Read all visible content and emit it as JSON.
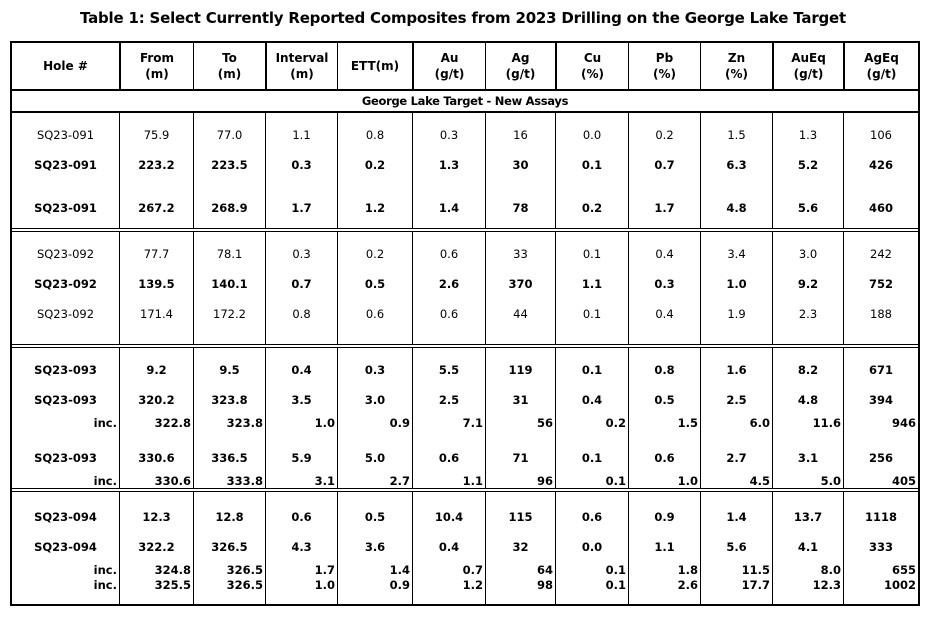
{
  "title": "Table 1: Select Currently Reported Composites from 2023 Drilling on the George Lake Target",
  "table": {
    "columns": [
      {
        "label": "Hole #",
        "sub": ""
      },
      {
        "label": "From",
        "sub": "(m)"
      },
      {
        "label": "To",
        "sub": "(m)"
      },
      {
        "label": "Interval",
        "sub": "(m)"
      },
      {
        "label": "ETT(m)",
        "sub": ""
      },
      {
        "label": "Au",
        "sub": "(g/t)"
      },
      {
        "label": "Ag",
        "sub": "(g/t)"
      },
      {
        "label": "Cu",
        "sub": "(%)"
      },
      {
        "label": "Pb",
        "sub": "(%)"
      },
      {
        "label": "Zn",
        "sub": "(%)"
      },
      {
        "label": "AuEq",
        "sub": "(g/t)"
      },
      {
        "label": "AgEq",
        "sub": "(g/t)"
      }
    ],
    "section_banner": "George Lake Target - New Assays",
    "colors": {
      "text": "#000000",
      "border": "#000000",
      "background": "#ffffff"
    },
    "blocks": [
      {
        "hole": "SQ23-091",
        "rows": [
          {
            "cells": [
              "SQ23-091",
              "75.9",
              "77.0",
              "1.1",
              "0.8",
              "0.3",
              "16",
              "0.0",
              "0.2",
              "1.5",
              "1.3",
              "106"
            ],
            "bold": false,
            "inc": false,
            "gap_before": false
          },
          {
            "cells": [
              "SQ23-091",
              "223.2",
              "223.5",
              "0.3",
              "0.2",
              "1.3",
              "30",
              "0.1",
              "0.7",
              "6.3",
              "5.2",
              "426"
            ],
            "bold": true,
            "inc": false,
            "gap_before": false
          },
          {
            "cells": [
              "SQ23-091",
              "267.2",
              "268.9",
              "1.7",
              "1.2",
              "1.4",
              "78",
              "0.2",
              "1.7",
              "4.8",
              "5.6",
              "460"
            ],
            "bold": true,
            "inc": false,
            "gap_before": true
          }
        ]
      },
      {
        "hole": "SQ23-092",
        "rows": [
          {
            "cells": [
              "SQ23-092",
              "77.7",
              "78.1",
              "0.3",
              "0.2",
              "0.6",
              "33",
              "0.1",
              "0.4",
              "3.4",
              "3.0",
              "242"
            ],
            "bold": false,
            "inc": false,
            "gap_before": false
          },
          {
            "cells": [
              "SQ23-092",
              "139.5",
              "140.1",
              "0.7",
              "0.5",
              "2.6",
              "370",
              "1.1",
              "0.3",
              "1.0",
              "9.2",
              "752"
            ],
            "bold": true,
            "inc": false,
            "gap_before": false
          },
          {
            "cells": [
              "SQ23-092",
              "171.4",
              "172.2",
              "0.8",
              "0.6",
              "0.6",
              "44",
              "0.1",
              "0.4",
              "1.9",
              "2.3",
              "188"
            ],
            "bold": false,
            "inc": false,
            "gap_before": false
          }
        ]
      },
      {
        "hole": "SQ23-093",
        "rows": [
          {
            "cells": [
              "SQ23-093",
              "9.2",
              "9.5",
              "0.4",
              "0.3",
              "5.5",
              "119",
              "0.1",
              "0.8",
              "1.6",
              "8.2",
              "671"
            ],
            "bold": true,
            "inc": false,
            "gap_before": false
          },
          {
            "cells": [
              "SQ23-093",
              "320.2",
              "323.8",
              "3.5",
              "3.0",
              "2.5",
              "31",
              "0.4",
              "0.5",
              "2.5",
              "4.8",
              "394"
            ],
            "bold": true,
            "inc": false,
            "gap_before": false
          },
          {
            "cells": [
              "inc.",
              "322.8",
              "323.8",
              "1.0",
              "0.9",
              "7.1",
              "56",
              "0.2",
              "1.5",
              "6.0",
              "11.6",
              "946"
            ],
            "bold": true,
            "inc": true,
            "gap_before": false
          },
          {
            "cells": [
              "SQ23-093",
              "330.6",
              "336.5",
              "5.9",
              "5.0",
              "0.6",
              "71",
              "0.1",
              "0.6",
              "2.7",
              "3.1",
              "256"
            ],
            "bold": true,
            "inc": false,
            "gap_before": true
          },
          {
            "cells": [
              "inc.",
              "330.6",
              "333.8",
              "3.1",
              "2.7",
              "1.1",
              "96",
              "0.1",
              "1.0",
              "4.5",
              "5.0",
              "405"
            ],
            "bold": true,
            "inc": true,
            "gap_before": false
          }
        ]
      },
      {
        "hole": "SQ23-094",
        "rows": [
          {
            "cells": [
              "SQ23-094",
              "12.3",
              "12.8",
              "0.6",
              "0.5",
              "10.4",
              "115",
              "0.6",
              "0.9",
              "1.4",
              "13.7",
              "1118"
            ],
            "bold": true,
            "inc": false,
            "gap_before": false
          },
          {
            "cells": [
              "SQ23-094",
              "322.2",
              "326.5",
              "4.3",
              "3.6",
              "0.4",
              "32",
              "0.0",
              "1.1",
              "5.6",
              "4.1",
              "333"
            ],
            "bold": true,
            "inc": false,
            "gap_before": false
          },
          {
            "cells": [
              "inc.",
              "324.8",
              "326.5",
              "1.7",
              "1.4",
              "0.7",
              "64",
              "0.1",
              "1.8",
              "11.5",
              "8.0",
              "655"
            ],
            "bold": true,
            "inc": true,
            "gap_before": false
          },
          {
            "cells": [
              "inc.",
              "325.5",
              "326.5",
              "1.0",
              "0.9",
              "1.2",
              "98",
              "0.1",
              "2.6",
              "17.7",
              "12.3",
              "1002"
            ],
            "bold": true,
            "inc": true,
            "gap_before": false
          }
        ]
      }
    ]
  }
}
